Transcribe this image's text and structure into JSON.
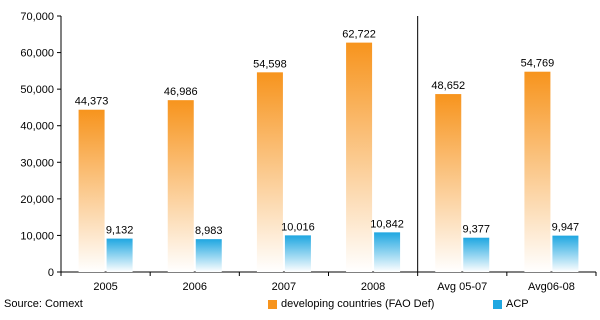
{
  "chart_data": {
    "type": "bar",
    "categories": [
      "2005",
      "2006",
      "2007",
      "2008",
      "Avg 05-07",
      "Avg06-08"
    ],
    "series": [
      {
        "name": "developing countries (FAO Def)",
        "values": [
          44373,
          46986,
          54598,
          62722,
          48652,
          54769
        ],
        "labels": [
          "44,373",
          "46,986",
          "54,598",
          "62,722",
          "48,652",
          "54,769"
        ],
        "color": "#f7941d"
      },
      {
        "name": "ACP",
        "values": [
          9132,
          8983,
          10016,
          10842,
          9377,
          9947
        ],
        "labels": [
          "9,132",
          "8,983",
          "10,016",
          "10,842",
          "9,377",
          "9,947"
        ],
        "color": "#1fa7e1"
      }
    ],
    "ylim": [
      0,
      70000
    ],
    "yticks": [
      0,
      10000,
      20000,
      30000,
      40000,
      50000,
      60000,
      70000
    ],
    "ytick_labels": [
      "0",
      "10,000",
      "20,000",
      "30,000",
      "40,000",
      "50,000",
      "60,000",
      "70,000"
    ],
    "grid": false,
    "legend": "bottom",
    "title": "",
    "xlabel": "",
    "ylabel": ""
  },
  "source": "Source: Comext"
}
